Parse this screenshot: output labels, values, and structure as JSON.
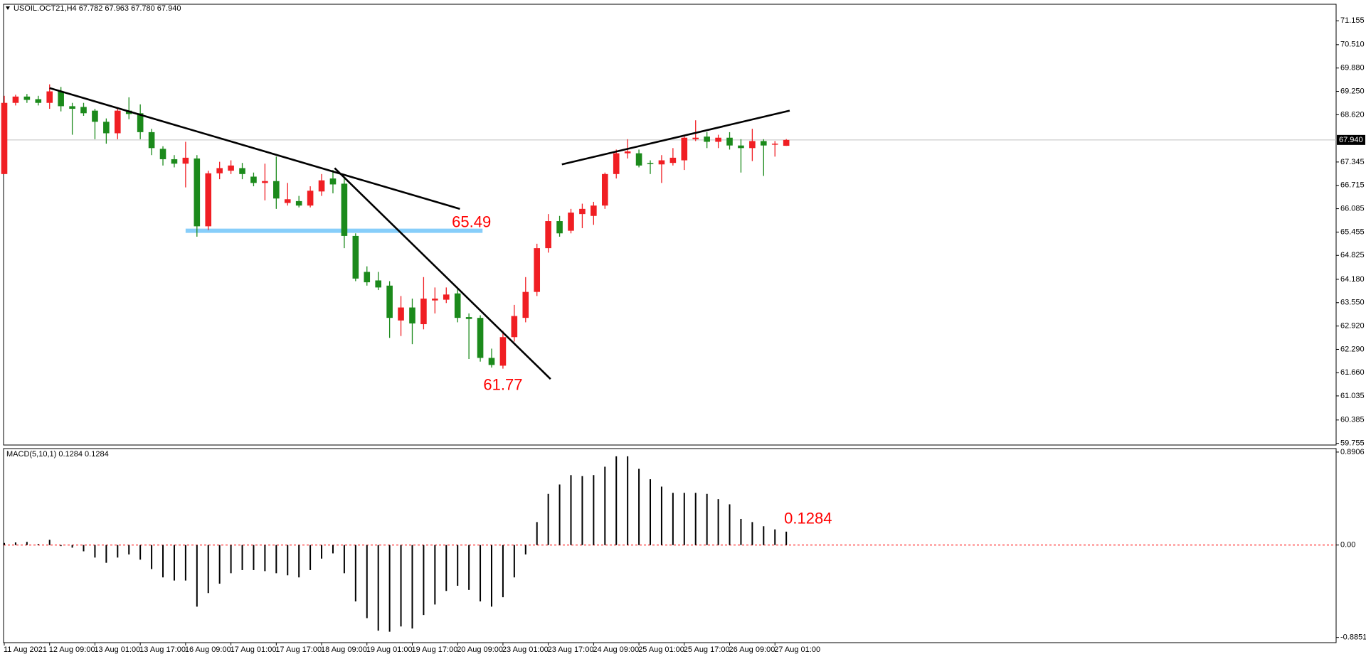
{
  "chart_data": [
    {
      "type": "candlestick",
      "title": "USOIL.OCT21,H4  67.782 67.963 67.780 67.940",
      "categories": [
        "11 Aug 2021",
        null,
        null,
        null,
        "12 Aug 09:00",
        null,
        null,
        null,
        "13 Aug 01:00",
        null,
        null,
        null,
        "13 Aug 17:00",
        null,
        null,
        null,
        "16 Aug 09:00",
        null,
        null,
        null,
        "17 Aug 01:00",
        null,
        null,
        null,
        "17 Aug 17:00",
        null,
        null,
        null,
        "18 Aug 09:00",
        null,
        null,
        null,
        "19 Aug 01:00",
        null,
        null,
        null,
        "19 Aug 17:00",
        null,
        null,
        null,
        "20 Aug 09:00",
        null,
        null,
        null,
        "23 Aug 01:00",
        null,
        null,
        null,
        "23 Aug 17:00",
        null,
        null,
        null,
        "24 Aug 09:00",
        null,
        null,
        null,
        "25 Aug 01:00",
        null,
        null,
        null,
        "25 Aug 17:00",
        null,
        null,
        null,
        "26 Aug 09:00",
        null,
        null,
        null,
        "27 Aug 01:00",
        null
      ],
      "open": [
        67.02,
        68.94,
        69.11,
        69.04,
        68.94,
        69.25,
        68.85,
        68.83,
        68.73,
        68.43,
        68.12,
        68.73,
        68.66,
        68.15,
        67.7,
        67.42,
        67.3,
        67.44,
        65.61,
        67.04,
        67.11,
        67.18,
        66.95,
        66.78,
        66.83,
        66.24,
        66.29,
        66.17,
        66.55,
        66.9,
        66.76,
        65.35,
        64.38,
        64.15,
        64.01,
        63.07,
        63.42,
        62.97,
        63.61,
        63.63,
        63.8,
        63.16,
        63.14,
        62.06,
        61.85,
        62.62,
        63.14,
        63.84,
        65.02,
        65.75,
        65.49,
        65.94,
        65.89,
        66.17,
        67.02,
        67.58,
        67.58,
        67.32,
        67.28,
        67.32,
        67.39,
        67.96,
        68.03,
        67.89,
        68.0,
        67.79,
        67.72,
        67.91,
        67.82,
        67.782
      ],
      "high": [
        69.13,
        69.16,
        69.18,
        69.13,
        69.44,
        69.37,
        68.94,
        68.94,
        68.78,
        68.52,
        68.8,
        69.09,
        68.9,
        68.24,
        67.77,
        67.53,
        67.89,
        67.53,
        67.11,
        67.35,
        67.39,
        67.32,
        67.06,
        67.3,
        67.49,
        66.78,
        66.43,
        66.69,
        67.02,
        67.13,
        66.9,
        65.42,
        64.53,
        64.38,
        64.13,
        63.73,
        63.66,
        64.24,
        63.96,
        63.96,
        63.91,
        63.26,
        63.21,
        62.31,
        62.79,
        63.49,
        64.24,
        65.14,
        65.94,
        65.89,
        66.08,
        66.22,
        66.27,
        67.06,
        67.68,
        67.96,
        67.68,
        67.39,
        67.53,
        67.72,
        68.08,
        68.47,
        68.15,
        68.08,
        68.15,
        67.96,
        68.24,
        67.96,
        67.91,
        67.963
      ],
      "low": [
        67.02,
        68.87,
        68.94,
        68.87,
        68.78,
        68.71,
        68.08,
        68.59,
        67.96,
        67.84,
        67.96,
        68.5,
        67.96,
        67.53,
        67.25,
        67.2,
        66.66,
        65.33,
        65.51,
        66.88,
        67.02,
        66.88,
        66.69,
        66.31,
        66.08,
        66.17,
        66.12,
        66.12,
        66.43,
        66.5,
        65.02,
        64.13,
        64.01,
        63.89,
        62.6,
        62.65,
        62.43,
        62.83,
        63.26,
        63.54,
        63.02,
        62.03,
        61.96,
        61.8,
        61.77,
        62.5,
        63.02,
        63.73,
        64.9,
        65.33,
        65.42,
        65.56,
        65.65,
        66.08,
        66.9,
        67.44,
        67.2,
        67.02,
        66.78,
        67.25,
        67.13,
        67.91,
        67.72,
        67.72,
        67.68,
        67.06,
        67.37,
        66.97,
        67.49,
        67.78
      ],
      "close": [
        68.94,
        69.11,
        69.02,
        68.94,
        69.25,
        68.85,
        68.78,
        68.66,
        68.43,
        68.12,
        68.73,
        68.64,
        68.15,
        67.72,
        67.42,
        67.3,
        67.46,
        65.61,
        67.04,
        67.18,
        67.25,
        67.02,
        66.78,
        66.83,
        66.36,
        66.34,
        66.17,
        66.57,
        66.85,
        66.74,
        65.35,
        64.2,
        64.1,
        63.96,
        63.14,
        63.42,
        62.99,
        63.66,
        63.66,
        63.77,
        63.14,
        63.11,
        62.06,
        61.87,
        62.62,
        63.19,
        63.84,
        65.02,
        65.75,
        65.42,
        65.98,
        66.08,
        66.17,
        67.02,
        67.58,
        67.63,
        67.25,
        67.3,
        67.39,
        67.46,
        68.0,
        68.0,
        67.89,
        68.0,
        67.79,
        67.72,
        67.91,
        67.79,
        67.84,
        67.94
      ],
      "up_color": "#f01e23",
      "down_color": "#1b8a1b",
      "ylim": [
        59.71,
        71.6
      ],
      "yticks": [
        71.155,
        {
          "value": 70.51,
          "label": "70.510"
        },
        {
          "value": 69.88,
          "label": "69.880"
        },
        {
          "value": 69.25,
          "label": "69.250"
        },
        {
          "value": 68.62,
          "label": "68.620"
        },
        67.345,
        66.715,
        66.085,
        65.455,
        64.825,
        {
          "value": 64.18,
          "label": "64.180"
        },
        {
          "value": 63.55,
          "label": "63.550"
        },
        {
          "value": 62.92,
          "label": "62.920"
        },
        {
          "value": 62.29,
          "label": "62.290"
        },
        {
          "value": 61.66,
          "label": "61.660"
        },
        61.035,
        60.385,
        59.755
      ],
      "current_price": {
        "value": 67.94,
        "label": "67.940"
      },
      "hlines": [
        {
          "value": 65.49,
          "x": [
            16,
            42.2
          ],
          "color": "#87cefa"
        }
      ],
      "trendlines": [
        {
          "x": [
            4,
            40.2
          ],
          "y": [
            69.34,
            66.08
          ]
        },
        {
          "x": [
            29.15,
            48.2
          ],
          "y": [
            67.18,
            61.49
          ]
        },
        {
          "x": [
            49.2,
            69.3
          ],
          "y": [
            67.28,
            68.73
          ]
        }
      ],
      "trendline_color": "#000000"
    },
    {
      "type": "bar",
      "title": "MACD(5,10,1) 0.1284 0.1284",
      "values": [
        0.02,
        0.025,
        0.03,
        0.01,
        0.05,
        -0.01,
        -0.025,
        -0.06,
        -0.12,
        -0.17,
        -0.12,
        -0.09,
        -0.14,
        -0.23,
        -0.31,
        -0.34,
        -0.34,
        -0.59,
        -0.46,
        -0.37,
        -0.27,
        -0.24,
        -0.24,
        -0.25,
        -0.27,
        -0.29,
        -0.31,
        -0.24,
        -0.13,
        -0.08,
        -0.27,
        -0.54,
        -0.7,
        -0.82,
        -0.83,
        -0.78,
        -0.8,
        -0.67,
        -0.57,
        -0.44,
        -0.39,
        -0.43,
        -0.54,
        -0.59,
        -0.5,
        -0.31,
        -0.09,
        0.22,
        0.49,
        0.58,
        0.67,
        0.66,
        0.67,
        0.75,
        0.85,
        0.85,
        0.73,
        0.63,
        0.56,
        0.5,
        0.5,
        0.5,
        0.49,
        0.44,
        0.39,
        0.25,
        0.22,
        0.18,
        0.15,
        0.1284
      ],
      "color": "#000000",
      "ylim": [
        -0.935,
        0.924
      ],
      "yticks": [
        0.8906,
        {
          "value": 0,
          "label": "0.00"
        },
        -0.8851
      ],
      "zero_line": true,
      "zero_line_color": "#ff0000"
    }
  ]
}
